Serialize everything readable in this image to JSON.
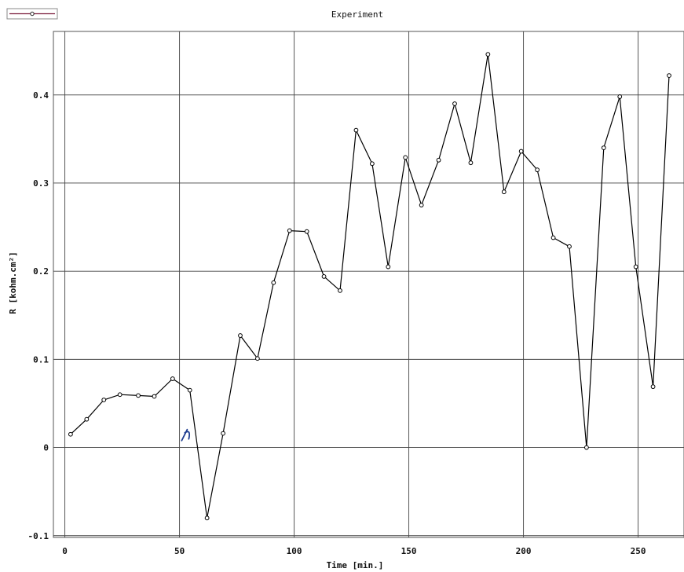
{
  "chart_data": {
    "type": "line",
    "title": "Experiment",
    "xlabel": "Time [min.]",
    "ylabel": "R [kohm.cm²]",
    "xlim": [
      -5,
      270
    ],
    "ylim": [
      -0.102,
      0.472
    ],
    "xticks": [
      0,
      50,
      100,
      150,
      200,
      250
    ],
    "xtick_labels": [
      "0",
      "50",
      "100",
      "150",
      "200",
      "250"
    ],
    "yticks": [
      -0.1,
      0,
      0.1,
      0.2,
      0.3,
      0.4
    ],
    "ytick_labels": [
      "-0.1",
      "0",
      "0.1",
      "0.2",
      "0.3",
      "0.4"
    ],
    "grid": true,
    "legend": "top-left",
    "line_color": "#000000",
    "legend_line_color": "#7a1a3a",
    "annotation": "a small blue pen mark near (53, 0.015)",
    "series": [
      {
        "x": [
          2.5,
          9.5,
          17,
          24,
          32,
          39,
          47,
          54.5,
          62,
          69,
          76.5,
          84,
          91,
          98,
          105.5,
          113,
          120,
          127,
          134,
          141,
          148.5,
          155.5,
          163,
          170,
          177,
          184.5,
          191.5,
          199,
          206,
          213,
          220,
          227.5,
          235,
          242,
          249,
          256.5,
          263.5
        ],
        "y": [
          0.015,
          0.032,
          0.054,
          0.06,
          0.059,
          0.058,
          0.078,
          0.065,
          -0.08,
          0.016,
          0.127,
          0.101,
          0.187,
          0.246,
          0.245,
          0.194,
          0.178,
          0.36,
          0.322,
          0.205,
          0.329,
          0.275,
          0.326,
          0.39,
          0.323,
          0.446,
          0.29,
          0.336,
          0.315,
          0.238,
          0.228,
          0.0,
          0.34,
          0.398,
          0.205,
          0.069,
          0.422
        ]
      }
    ]
  }
}
